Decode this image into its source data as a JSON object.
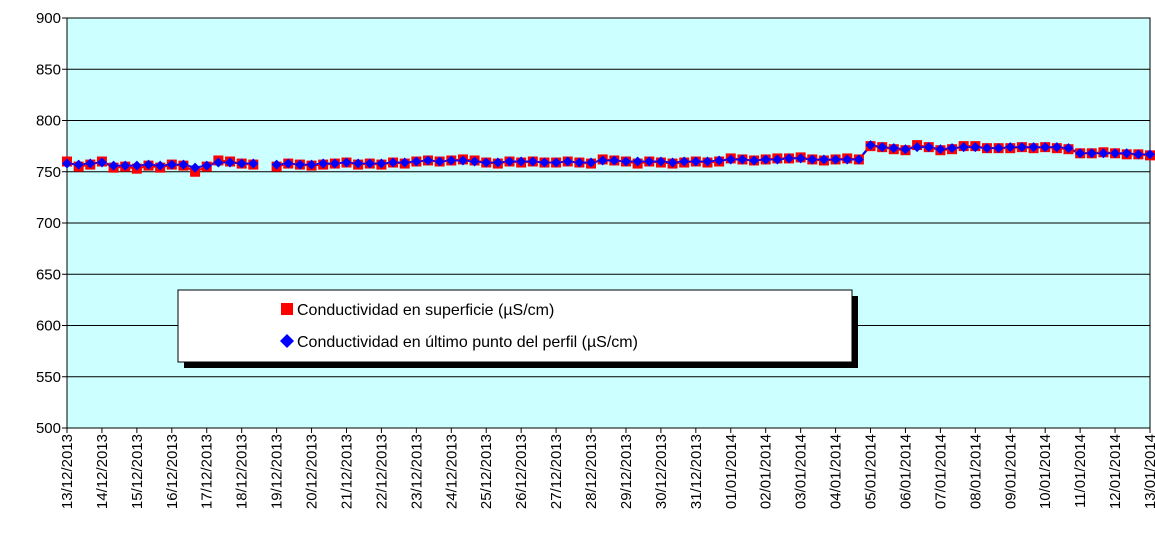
{
  "chart_data": {
    "type": "line",
    "categories": [
      "13/12/2013",
      null,
      null,
      "14/12/2013",
      null,
      null,
      "15/12/2013",
      null,
      null,
      "16/12/2013",
      null,
      null,
      "17/12/2013",
      null,
      null,
      "18/12/2013",
      null,
      null,
      "19/12/2013",
      null,
      null,
      "20/12/2013",
      null,
      null,
      "21/12/2013",
      null,
      null,
      "22/12/2013",
      null,
      null,
      "23/12/2013",
      null,
      null,
      "24/12/2013",
      null,
      null,
      "25/12/2013",
      null,
      null,
      "26/12/2013",
      null,
      null,
      "27/12/2013",
      null,
      null,
      "28/12/2013",
      null,
      null,
      "29/12/2013",
      null,
      null,
      "30/12/2013",
      null,
      null,
      "31/12/2013",
      null,
      null,
      "01/01/2014",
      null,
      null,
      "02/01/2014",
      null,
      null,
      "03/01/2014",
      null,
      null,
      "04/01/2014",
      null,
      null,
      "05/01/2014",
      null,
      null,
      "06/01/2014",
      null,
      null,
      "07/01/2014",
      null,
      null,
      "08/01/2014",
      null,
      null,
      "09/01/2014",
      null,
      null,
      "10/01/2014",
      null,
      null,
      "11/01/2014",
      null,
      null,
      "12/01/2014",
      null,
      null,
      "13/01/2014"
    ],
    "series": [
      {
        "name": "Conductividad en superficie (µS/cm)",
        "color": "#ff0000",
        "marker": "square",
        "values": [
          760,
          755,
          757,
          760,
          754,
          755,
          753,
          756,
          754,
          757,
          756,
          750,
          755,
          761,
          760,
          758,
          757,
          null,
          755,
          758,
          757,
          756,
          757,
          758,
          759,
          757,
          758,
          757,
          759,
          758,
          760,
          761,
          760,
          761,
          762,
          761,
          759,
          758,
          760,
          759,
          760,
          759,
          759,
          760,
          759,
          758,
          762,
          761,
          760,
          758,
          760,
          759,
          758,
          759,
          760,
          759,
          760,
          763,
          762,
          761,
          762,
          763,
          763,
          764,
          762,
          761,
          762,
          763,
          762,
          775,
          774,
          772,
          771,
          776,
          774,
          771,
          772,
          775,
          775,
          773,
          773,
          773,
          774,
          773,
          774,
          773,
          772,
          768,
          768,
          769,
          768,
          767,
          767,
          766
        ]
      },
      {
        "name": "Conductividad en último punto del perfil (µS/cm)",
        "color": "#0000ff",
        "marker": "diamond",
        "values": [
          758,
          757,
          758,
          759,
          756,
          756,
          756,
          757,
          756,
          757,
          757,
          754,
          756,
          759,
          759,
          758,
          758,
          null,
          757,
          758,
          757,
          757,
          758,
          758,
          759,
          758,
          758,
          758,
          759,
          759,
          760,
          761,
          760,
          761,
          761,
          760,
          759,
          759,
          760,
          760,
          760,
          759,
          759,
          760,
          759,
          759,
          761,
          761,
          760,
          760,
          760,
          760,
          759,
          760,
          760,
          760,
          761,
          762,
          762,
          761,
          762,
          762,
          763,
          763,
          762,
          762,
          762,
          762,
          762,
          776,
          774,
          773,
          772,
          774,
          774,
          772,
          773,
          774,
          774,
          773,
          773,
          774,
          774,
          774,
          774,
          774,
          773,
          768,
          768,
          768,
          768,
          768,
          767,
          767
        ]
      }
    ],
    "ylim": [
      500,
      900
    ],
    "yticks": [
      500,
      550,
      600,
      650,
      700,
      750,
      800,
      850,
      900
    ],
    "grid": true,
    "legend": "inside"
  }
}
